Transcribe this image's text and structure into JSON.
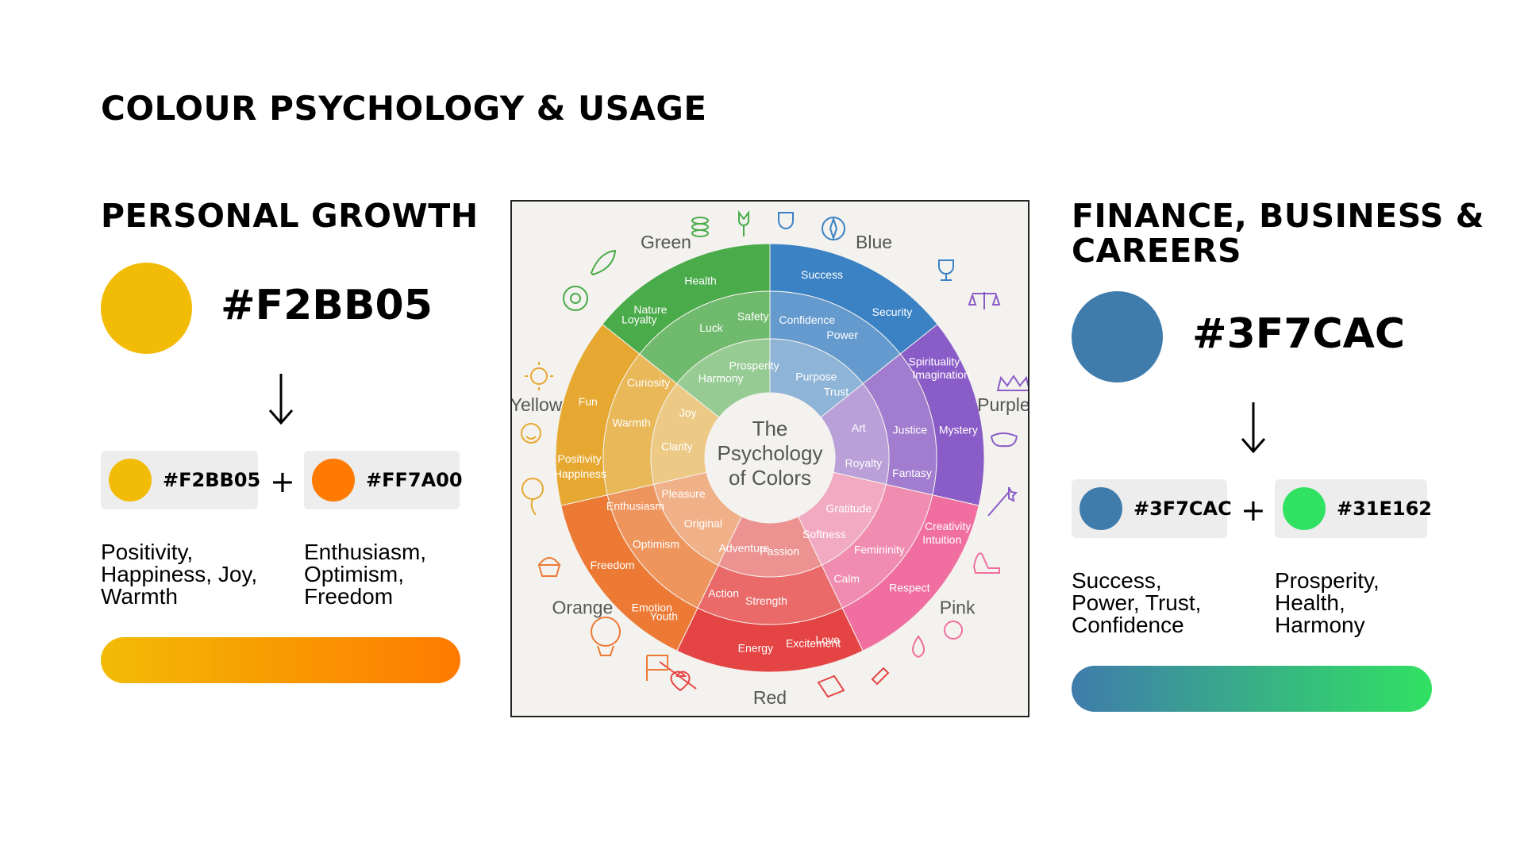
{
  "page": {
    "title": "COLOUR PSYCHOLOGY & USAGE"
  },
  "left": {
    "heading": "PERSONAL GROWTH",
    "main_color": "#F2BB05",
    "main_hex": "#F2BB05",
    "chip1": {
      "color": "#F2BB05",
      "hex": "#F2BB05",
      "desc": "Positivity,\nHappiness, Joy,\nWarmth"
    },
    "chip2": {
      "color": "#FF7A00",
      "hex": "#FF7A00",
      "desc": "Enthusiasm,\nOptimism,\nFreedom"
    },
    "plus": "+",
    "gradient": [
      "#F2BB05",
      "#FF7A00"
    ]
  },
  "right": {
    "heading": "FINANCE, BUSINESS & CAREERS",
    "main_color": "#3F7CAC",
    "main_hex": "#3F7CAC",
    "chip1": {
      "color": "#3F7CAC",
      "hex": "#3F7CAC",
      "desc": "Success,\nPower, Trust,\nConfidence"
    },
    "chip2": {
      "color": "#31E162",
      "hex": "#31E162",
      "desc": "Prosperity,\nHealth,\nHarmony"
    },
    "plus": "+",
    "gradient": [
      "#3F7CAC",
      "#31E162"
    ]
  },
  "wheel": {
    "center_lines": [
      "The",
      "Psychology",
      "of Colors"
    ],
    "segments": [
      {
        "name": "Blue",
        "color": "#3b82c4",
        "words": [
          "Success",
          "Power",
          "Trust",
          "Security",
          "Confidence",
          "Purpose"
        ]
      },
      {
        "name": "Purple",
        "color": "#8a5cc7",
        "words": [
          "Imagination",
          "Justice",
          "Royalty",
          "Mystery",
          "Fantasy",
          "Art",
          "Spirituality"
        ]
      },
      {
        "name": "Pink",
        "color": "#f06fa0",
        "words": [
          "Intuition",
          "Femininity",
          "Softness",
          "Respect",
          "Calm",
          "Gratitude",
          "Creativity"
        ]
      },
      {
        "name": "Red",
        "color": "#e54444",
        "words": [
          "Excitement",
          "Strength",
          "Adventure",
          "Energy",
          "Action",
          "Passion",
          "Love"
        ]
      },
      {
        "name": "Orange",
        "color": "#ec7a35",
        "words": [
          "Emotion",
          "Optimism",
          "Pleasure",
          "Freedom",
          "Enthusiasm",
          "Original",
          "Youth"
        ]
      },
      {
        "name": "Yellow",
        "color": "#e6a830",
        "words": [
          "Positivity",
          "Warmth",
          "Joy",
          "Fun",
          "Curiosity",
          "Clarity",
          "Happiness"
        ]
      },
      {
        "name": "Green",
        "color": "#4aab4a",
        "words": [
          "Nature",
          "Luck",
          "Prosperity",
          "Health",
          "Safety",
          "Harmony",
          "Loyalty"
        ]
      }
    ]
  }
}
